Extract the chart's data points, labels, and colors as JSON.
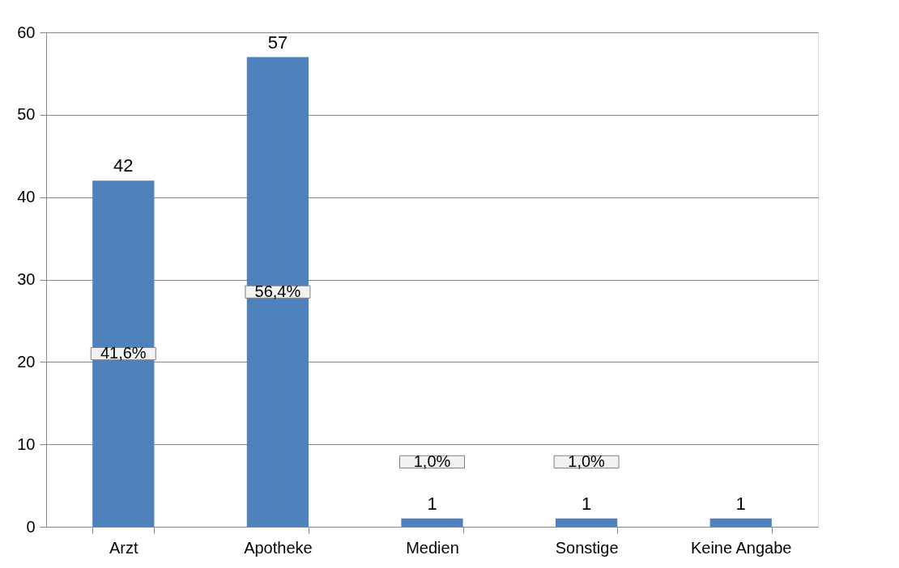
{
  "chart_data": {
    "type": "bar",
    "categories": [
      "Arzt",
      "Apotheke",
      "Medien",
      "Sonstige",
      "Keine Angabe"
    ],
    "values": [
      42,
      57,
      1,
      1,
      1
    ],
    "color": "#4f81bd",
    "ylim": [
      0,
      60
    ],
    "yticks": [
      0,
      10,
      20,
      30,
      40,
      50,
      60
    ],
    "grid": "y",
    "data_labels": true,
    "annotations": [
      "41,6%",
      "56,4%",
      "1,0%",
      "1,0%"
    ]
  }
}
